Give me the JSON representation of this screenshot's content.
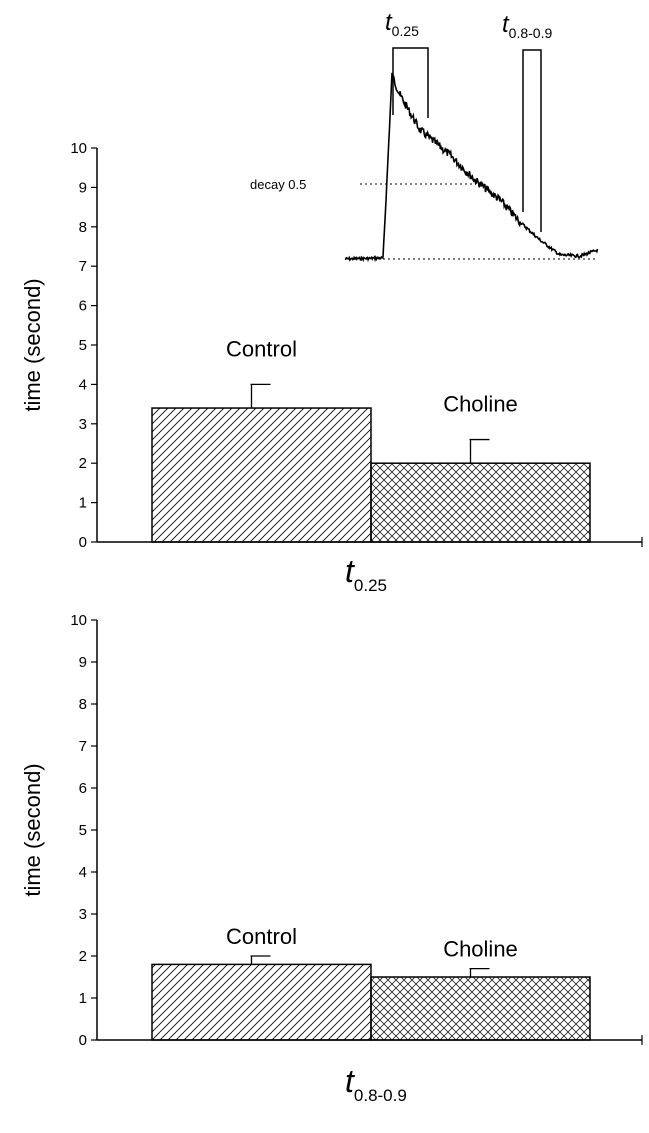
{
  "chart_data": [
    {
      "type": "bar",
      "ylabel": "time (second)",
      "xlabel": {
        "text": "t",
        "subscript": "0.25"
      },
      "categories": [
        "Control",
        "Choline"
      ],
      "values": [
        3.4,
        2.0
      ],
      "errors": [
        0.6,
        0.6
      ],
      "patterns": [
        "diagonal",
        "crosshatch"
      ],
      "color": "#000000",
      "ylim": [
        0,
        10
      ],
      "yticks": [
        0,
        1,
        2,
        3,
        4,
        5,
        6,
        7,
        8,
        9,
        10
      ],
      "inset_labels": [
        {
          "text": "t",
          "subscript": "0.25"
        },
        {
          "text": "t",
          "subscript": "0.8-0.9"
        }
      ],
      "decay_label": "decay 0.5"
    },
    {
      "type": "bar",
      "ylabel": "time (second)",
      "xlabel": {
        "text": "t",
        "subscript": "0.8-0.9"
      },
      "categories": [
        "Control",
        "Choline"
      ],
      "values": [
        1.8,
        1.5
      ],
      "errors": [
        0.2,
        0.2
      ],
      "patterns": [
        "diagonal",
        "crosshatch"
      ],
      "color": "#000000",
      "ylim": [
        0,
        10
      ],
      "yticks": [
        0,
        1,
        2,
        3,
        4,
        5,
        6,
        7,
        8,
        9,
        10
      ]
    }
  ]
}
